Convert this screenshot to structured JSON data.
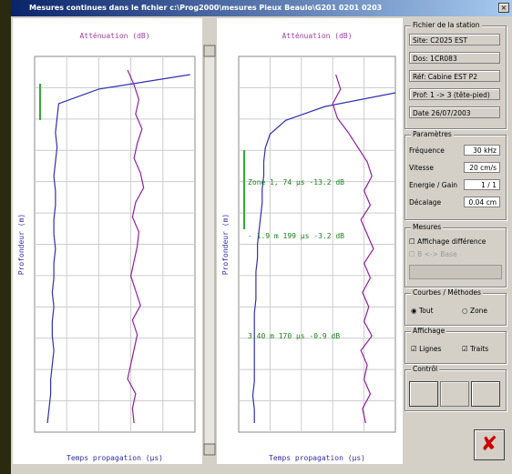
{
  "window": {
    "title": "Mesures continues dans le fichier c:\\Prog2000\\mesures Pieux Beaulo\\G201 0201 0203"
  },
  "plots": [
    {
      "top_label": "Atténuation (dB)",
      "y_axis_label": "Profondeur (m)",
      "x_axis_label": "Temps propagation (µs)",
      "time_trace": [
        97,
        40,
        15,
        14,
        13,
        14,
        13,
        12,
        13,
        13,
        12,
        12,
        13,
        12,
        12,
        11,
        12,
        11,
        11,
        12,
        11,
        10,
        10,
        9,
        8
      ],
      "attenuation_trace": [
        58,
        62,
        65,
        63,
        67,
        64,
        62,
        66,
        68,
        63,
        61,
        65,
        64,
        62,
        60,
        63,
        66,
        61,
        64,
        62,
        60,
        58,
        63,
        61,
        62
      ],
      "annotations": []
    },
    {
      "top_label": "Atténuation (dB)",
      "y_axis_label": "Profondeur (m)",
      "x_axis_label": "Temps propagation (µs)",
      "time_trace": [
        100,
        55,
        30,
        20,
        17,
        16,
        16,
        15,
        15,
        14,
        13,
        12,
        12,
        11,
        11,
        11,
        10,
        10,
        10,
        10,
        10,
        10,
        9,
        10,
        10
      ],
      "attenuation_trace": [
        62,
        65,
        60,
        63,
        70,
        76,
        82,
        85,
        80,
        84,
        78,
        82,
        86,
        80,
        84,
        79,
        83,
        80,
        85,
        78,
        82,
        80,
        84,
        79,
        81
      ],
      "annotations": [
        "Zone 1, 74 µs   -13.2 dB",
        "- 1.9 m   199 µs   -3.2 dB",
        "3.40 m   170 µs   -0.9 dB"
      ]
    }
  ],
  "side": {
    "file_group": {
      "title": "Fichier de la station",
      "fields": [
        "Site: C2025 EST",
        "Dos: 1CR083",
        "Réf: Cabine EST P2",
        "Prof: 1 -> 3 (tête-pied)",
        "Date 26/07/2003"
      ]
    },
    "params_group": {
      "title": "Paramètres",
      "rows": [
        [
          "Fréquence",
          "30 kHz"
        ],
        [
          "Vitesse",
          "20 cm/s"
        ],
        [
          "Energie / Gain",
          "1 / 1"
        ],
        [
          "Décalage",
          "0.04 cm"
        ]
      ]
    },
    "measures_group": {
      "title": "Mesures",
      "check": "Affichage différence",
      "disabled": "B <-> Base"
    },
    "curves_group": {
      "title": "Courbes / Méthodes",
      "options": [
        "Tout",
        "Zone"
      ]
    },
    "display_group": {
      "title": "Affichage",
      "options": [
        "Lignes",
        "Traits"
      ]
    },
    "control_group": {
      "title": "Contrôl"
    }
  }
}
